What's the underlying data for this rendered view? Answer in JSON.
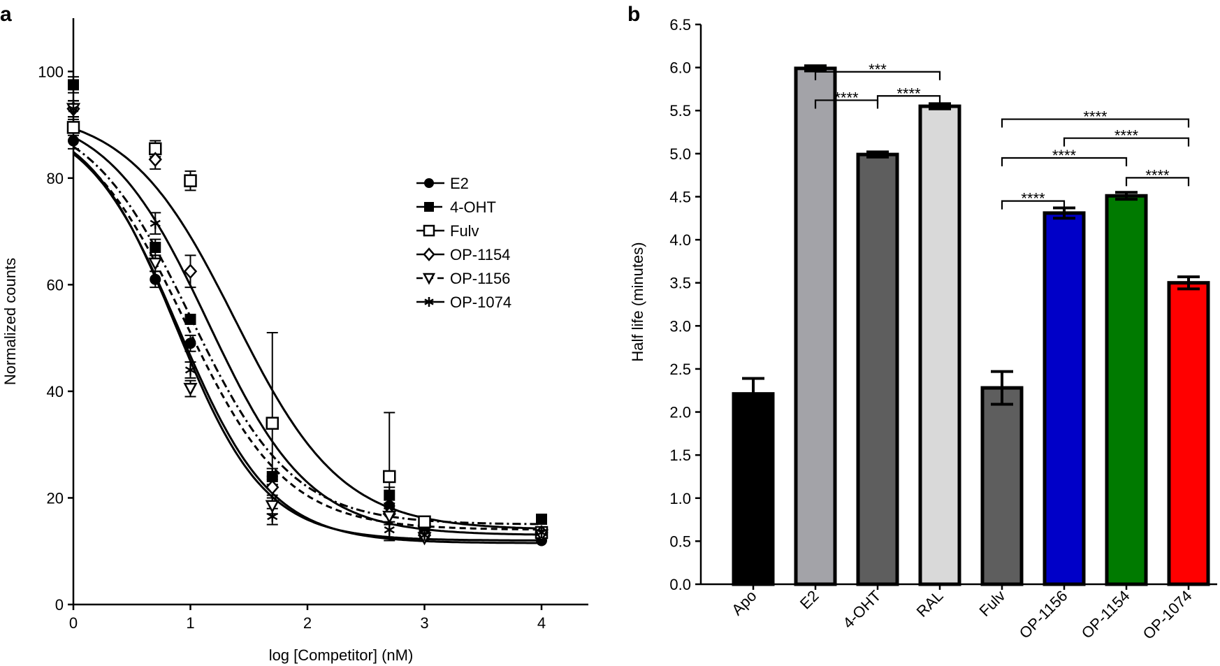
{
  "chart_data": [
    {
      "type": "scatter",
      "panel_label": "a",
      "title": "",
      "xlabel": "log [Competitor] (nM)",
      "ylabel": "Normalized counts",
      "xlim": [
        0,
        4.4
      ],
      "ylim": [
        0,
        110
      ],
      "xticks": [
        0,
        1,
        2,
        3,
        4
      ],
      "yticks": [
        0,
        20,
        40,
        60,
        80,
        100
      ],
      "legend_position": "center-right",
      "x": [
        0,
        0.7,
        1.0,
        1.7,
        2.7,
        3.0,
        4.0
      ],
      "series": [
        {
          "name": "E2",
          "marker": "filled-circle",
          "line": "solid",
          "values": [
            87,
            61,
            49,
            24,
            18.5,
            13,
            12
          ],
          "errors": [
            1.5,
            1.5,
            1.5,
            1.5,
            1.0,
            0.8,
            0.5
          ],
          "fit": {
            "bottom": 11.5,
            "top": 92,
            "log_ic50": 0.9,
            "hill": 1.1
          }
        },
        {
          "name": "4-OHT",
          "marker": "filled-square",
          "line": "dash-dot",
          "values": [
            97.5,
            67,
            53.5,
            24,
            20.5,
            14,
            16
          ],
          "errors": [
            1.5,
            1.5,
            1.0,
            1.5,
            1.5,
            0.8,
            0.5
          ],
          "fit": {
            "bottom": 15,
            "top": 93,
            "log_ic50": 1.0,
            "hill": 1.0
          }
        },
        {
          "name": "Fulv",
          "marker": "open-square",
          "line": "solid",
          "values": [
            89.5,
            85.5,
            79.5,
            34,
            24,
            15.5,
            13.5
          ],
          "errors": [
            1.5,
            1.5,
            1.8,
            17,
            12,
            1.0,
            0.8
          ],
          "fit": {
            "bottom": 14,
            "top": 93,
            "log_ic50": 1.38,
            "hill": 0.95
          }
        },
        {
          "name": "OP-1154",
          "marker": "open-diamond",
          "line": "solid",
          "values": [
            93,
            83.5,
            62.5,
            22,
            17,
            13,
            13.5
          ],
          "errors": [
            1.5,
            1.8,
            3.0,
            1.5,
            1.5,
            0.8,
            0.5
          ],
          "fit": {
            "bottom": 13,
            "top": 93,
            "log_ic50": 1.15,
            "hill": 1.0
          }
        },
        {
          "name": "OP-1156",
          "marker": "open-triangle-down",
          "line": "dashed",
          "values": [
            93,
            64,
            40.5,
            18.5,
            16.5,
            12.5,
            13
          ],
          "errors": [
            1.5,
            1.5,
            1.5,
            1.5,
            1.5,
            0.8,
            0.5
          ],
          "fit": {
            "bottom": 14,
            "top": 92.5,
            "log_ic50": 0.95,
            "hill": 1.0
          }
        },
        {
          "name": "OP-1074",
          "marker": "asterisk",
          "line": "solid",
          "values": [
            93,
            71.5,
            44,
            16.5,
            14,
            13,
            13.5
          ],
          "errors": [
            1.5,
            2.0,
            1.5,
            1.5,
            1.5,
            0.8,
            0.5
          ],
          "fit": {
            "bottom": 12,
            "top": 92,
            "log_ic50": 0.88,
            "hill": 1.15
          }
        }
      ]
    },
    {
      "type": "bar",
      "panel_label": "b",
      "title": "",
      "xlabel": "",
      "ylabel": "Half life (minutes)",
      "ylim": [
        0,
        6.5
      ],
      "yticks": [
        "0.0",
        "0.5",
        "1.0",
        "1.5",
        "2.0",
        "2.5",
        "3.0",
        "3.5",
        "4.0",
        "4.5",
        "5.0",
        "5.5",
        "6.0",
        "6.5"
      ],
      "categories": [
        "Apo",
        "E2",
        "4-OHT",
        "RAL",
        "Fulv",
        "OP-1156",
        "OP-1154",
        "OP-1074"
      ],
      "values": [
        2.21,
        5.99,
        4.99,
        5.55,
        2.28,
        4.31,
        4.51,
        3.5
      ],
      "errors": [
        0.18,
        0.03,
        0.03,
        0.03,
        0.19,
        0.06,
        0.04,
        0.07
      ],
      "colors": [
        "#000000",
        "#a3a3a8",
        "#5e5e5e",
        "#d9d9d9",
        "#5e5e5e",
        "#0000c8",
        "#007a00",
        "#ff0000"
      ],
      "significance": [
        {
          "from": 1,
          "to": 2,
          "y": 5.62,
          "label": "****"
        },
        {
          "from": 1,
          "to": 3,
          "y": 5.95,
          "label": "***"
        },
        {
          "from": 2,
          "to": 3,
          "y": 5.67,
          "label": "****"
        },
        {
          "from": 4,
          "to": 5,
          "y": 4.45,
          "label": "****"
        },
        {
          "from": 4,
          "to": 6,
          "y": 4.95,
          "label": "****"
        },
        {
          "from": 4,
          "to": 7,
          "y": 5.4,
          "label": "****"
        },
        {
          "from": 5,
          "to": 7,
          "y": 5.18,
          "label": "****"
        },
        {
          "from": 6,
          "to": 7,
          "y": 4.72,
          "label": "****"
        }
      ]
    }
  ]
}
